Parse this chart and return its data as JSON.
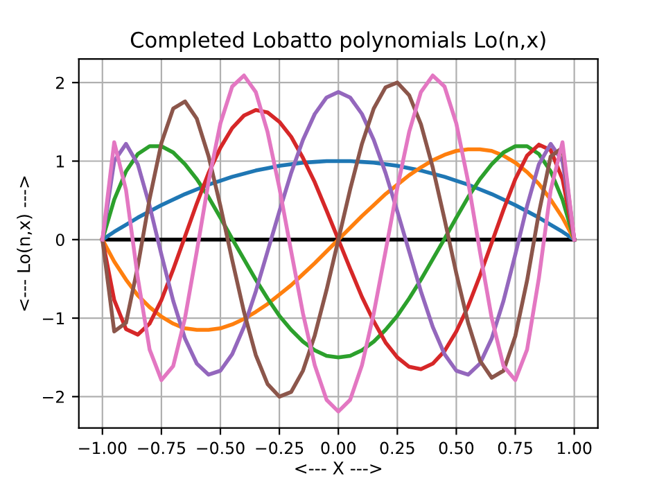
{
  "chart_data": {
    "type": "line",
    "title": "Completed Lobatto polynomials Lo(n,x)",
    "xlabel": "<--- X --->",
    "ylabel": "<--- Lo(n,x) --->",
    "x": [
      -1,
      -0.95,
      -0.9,
      -0.85,
      -0.8,
      -0.75,
      -0.7,
      -0.65,
      -0.6,
      -0.55,
      -0.5,
      -0.45,
      -0.4,
      -0.35,
      -0.3,
      -0.25,
      -0.2,
      -0.15,
      -0.1,
      -0.05,
      0,
      0.05,
      0.1,
      0.15,
      0.2,
      0.25,
      0.3,
      0.35,
      0.4,
      0.45,
      0.5,
      0.55,
      0.6,
      0.65,
      0.7,
      0.75,
      0.8,
      0.85,
      0.9,
      0.95,
      1
    ],
    "series": [
      {
        "color": "#000000",
        "x": [
          -1,
          1
        ],
        "values": [
          0,
          0
        ]
      },
      {
        "color": "#1f77b4",
        "values": [
          0,
          0.1,
          0.19,
          0.28,
          0.36,
          0.44,
          0.51,
          0.58,
          0.64,
          0.7,
          0.75,
          0.8,
          0.84,
          0.88,
          0.91,
          0.94,
          0.96,
          0.98,
          0.99,
          1,
          1,
          1,
          0.99,
          0.98,
          0.96,
          0.94,
          0.91,
          0.88,
          0.84,
          0.8,
          0.75,
          0.7,
          0.64,
          0.58,
          0.51,
          0.44,
          0.36,
          0.28,
          0.19,
          0.1,
          0
        ]
      },
      {
        "color": "#ff7f0e",
        "values": [
          0,
          -0.28,
          -0.51,
          -0.71,
          -0.86,
          -0.98,
          -1.07,
          -1.13,
          -1.15,
          -1.15,
          -1.13,
          -1.08,
          -1.01,
          -0.92,
          -0.82,
          -0.7,
          -0.58,
          -0.44,
          -0.3,
          -0.15,
          0,
          0.15,
          0.3,
          0.44,
          0.58,
          0.7,
          0.82,
          0.92,
          1.01,
          1.08,
          1.13,
          1.15,
          1.15,
          1.13,
          1.07,
          0.98,
          0.86,
          0.71,
          0.51,
          0.28,
          0
        ]
      },
      {
        "color": "#2ca02c",
        "values": [
          0,
          0.51,
          0.87,
          1.09,
          1.19,
          1.19,
          1.11,
          0.96,
          0.77,
          0.54,
          0.28,
          0.01,
          -0.25,
          -0.51,
          -0.75,
          -0.97,
          -1.15,
          -1.3,
          -1.41,
          -1.48,
          -1.5,
          -1.48,
          -1.41,
          -1.3,
          -1.15,
          -0.97,
          -0.75,
          -0.51,
          -0.25,
          0.01,
          0.28,
          0.54,
          0.77,
          0.96,
          1.11,
          1.19,
          1.19,
          1.09,
          0.87,
          0.51,
          0
        ]
      },
      {
        "color": "#d62728",
        "values": [
          0,
          -0.77,
          -1.14,
          -1.21,
          -1.07,
          -0.77,
          -0.38,
          0.04,
          0.46,
          0.85,
          1.17,
          1.42,
          1.58,
          1.65,
          1.62,
          1.5,
          1.31,
          1.04,
          0.73,
          0.37,
          0,
          -0.37,
          -0.73,
          -1.04,
          -1.31,
          -1.5,
          -1.62,
          -1.65,
          -1.58,
          -1.42,
          -1.17,
          -0.85,
          -0.46,
          -0.04,
          0.38,
          0.77,
          1.07,
          1.21,
          1.14,
          0.77,
          0
        ]
      },
      {
        "color": "#9467bd",
        "values": [
          0,
          1,
          1.22,
          0.96,
          0.43,
          -0.19,
          -0.78,
          -1.26,
          -1.58,
          -1.72,
          -1.67,
          -1.46,
          -1.11,
          -0.66,
          -0.15,
          0.36,
          0.85,
          1.27,
          1.6,
          1.81,
          1.88,
          1.81,
          1.6,
          1.27,
          0.85,
          0.36,
          -0.15,
          -0.66,
          -1.11,
          -1.46,
          -1.67,
          -1.72,
          -1.58,
          -1.26,
          -0.78,
          -0.19,
          0.43,
          0.96,
          1.22,
          1,
          0
        ]
      },
      {
        "color": "#8c564b",
        "values": [
          0,
          -1.17,
          -1.06,
          -0.34,
          0.52,
          1.23,
          1.67,
          1.76,
          1.54,
          1.06,
          0.43,
          -0.26,
          -0.92,
          -1.47,
          -1.84,
          -2,
          -1.94,
          -1.67,
          -1.22,
          -0.64,
          0,
          0.64,
          1.22,
          1.67,
          1.94,
          2,
          1.84,
          1.47,
          0.92,
          0.26,
          -0.43,
          -1.06,
          -1.54,
          -1.76,
          -1.67,
          -1.23,
          -0.52,
          0.34,
          1.06,
          1.17,
          0
        ]
      },
      {
        "color": "#e377c2",
        "values": [
          0,
          1.24,
          0.63,
          -0.49,
          -1.4,
          -1.79,
          -1.61,
          -1,
          -0.15,
          0.74,
          1.48,
          1.95,
          2.09,
          1.88,
          1.37,
          0.66,
          -0.15,
          -0.94,
          -1.6,
          -2.04,
          -2.19,
          -2.04,
          -1.6,
          -0.94,
          -0.15,
          0.66,
          1.37,
          1.88,
          2.09,
          1.95,
          1.48,
          0.74,
          -0.15,
          -1,
          -1.61,
          -1.79,
          -1.4,
          -0.49,
          0.63,
          1.24,
          0
        ]
      }
    ],
    "xlim": [
      -1.1,
      1.1
    ],
    "ylim": [
      -2.4,
      2.3
    ],
    "xticks": [
      {
        "value": -1,
        "label": "−1.00"
      },
      {
        "value": -0.75,
        "label": "−0.75"
      },
      {
        "value": -0.5,
        "label": "−0.50"
      },
      {
        "value": -0.25,
        "label": "−0.25"
      },
      {
        "value": 0,
        "label": "0.00"
      },
      {
        "value": 0.25,
        "label": "0.25"
      },
      {
        "value": 0.5,
        "label": "0.50"
      },
      {
        "value": 0.75,
        "label": "0.75"
      },
      {
        "value": 1,
        "label": "1.00"
      }
    ],
    "yticks": [
      {
        "value": -2,
        "label": "−2"
      },
      {
        "value": -1,
        "label": "−1"
      },
      0,
      1,
      2
    ],
    "grid": true,
    "marker": "none",
    "line_style": "solid"
  }
}
